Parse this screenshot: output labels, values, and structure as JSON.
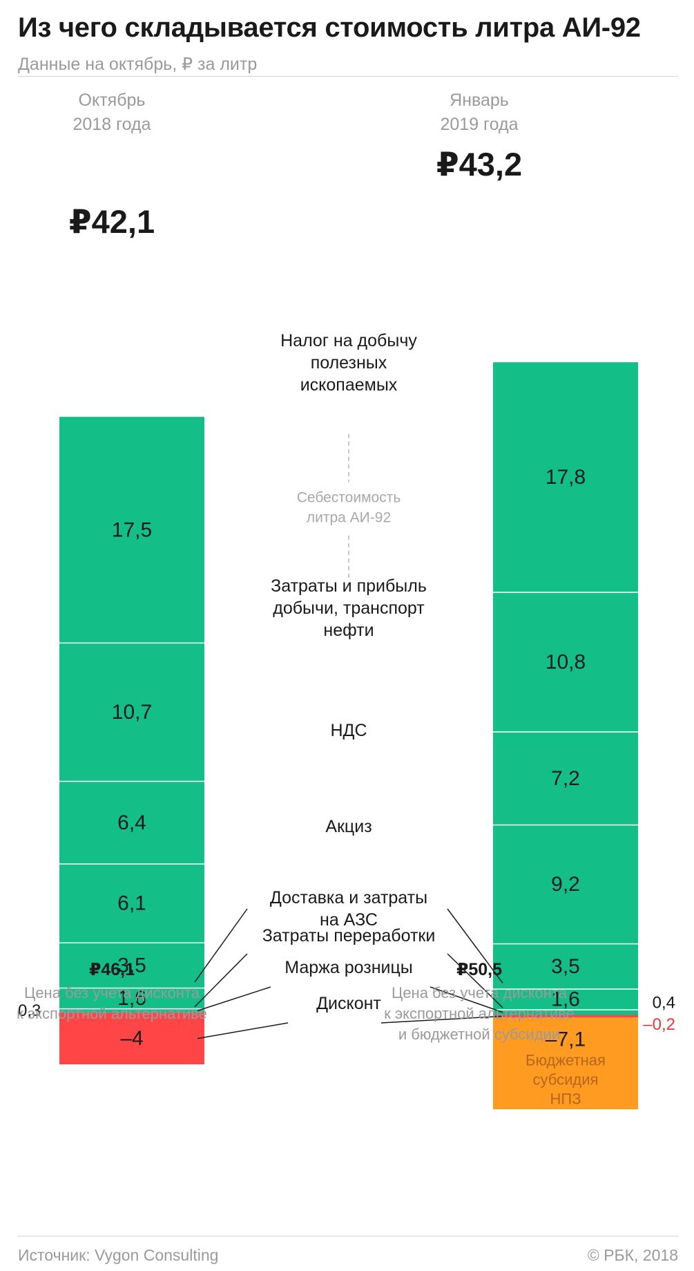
{
  "header": {
    "title": "Из чего складывается стоимость литра АИ-92",
    "subtitle": "Данные на октябрь, ₽ за литр"
  },
  "columns": [
    {
      "period_line1": "Октябрь",
      "period_line2": "2018 года",
      "total": "₽42,1",
      "bottom_total": "₽46,1",
      "bottom_note_line1": "Цена без учета дисконта",
      "bottom_note_line2": "к экспортной альтернативе",
      "bottom_note_line3": ""
    },
    {
      "period_line1": "Январь",
      "period_line2": "2019 года",
      "total": "₽43,2",
      "bottom_total": "₽50,5",
      "bottom_note_line1": "Цена без учета дисконта",
      "bottom_note_line2": "к экспортной альтернативе",
      "bottom_note_line3": "и бюджетной субсидии"
    }
  ],
  "chart_data": {
    "type": "bar",
    "subtype": "stacked",
    "categories": [
      "Октябрь 2018 года",
      "Январь 2019 года"
    ],
    "series": [
      {
        "name": "Налог на добычу полезных ископаемых",
        "values": [
          17.5,
          17.8
        ],
        "labels": [
          "17,5",
          "17,8"
        ],
        "color": "#13bf87"
      },
      {
        "name": "Затраты и прибыль добычи, транспорт нефти",
        "values": [
          10.7,
          10.8
        ],
        "labels": [
          "10,7",
          "10,8"
        ],
        "color": "#13bf87"
      },
      {
        "name": "НДС",
        "values": [
          6.4,
          7.2
        ],
        "labels": [
          "6,4",
          "7,2"
        ],
        "color": "#13bf87"
      },
      {
        "name": "Акциз",
        "values": [
          6.1,
          9.2
        ],
        "labels": [
          "6,1",
          "9,2"
        ],
        "color": "#13bf87"
      },
      {
        "name": "Доставка и затраты на АЗС",
        "values": [
          3.5,
          3.5
        ],
        "labels": [
          "3,5",
          "3,5"
        ],
        "color": "#13bf87"
      },
      {
        "name": "Затраты переработки",
        "values": [
          1.6,
          1.6
        ],
        "labels": [
          "1,6",
          "1,6"
        ],
        "color": "#13bf87"
      },
      {
        "name": "Маржа розницы",
        "values": [
          0.3,
          0.4
        ],
        "labels": [
          "0,3",
          "0,4"
        ],
        "color": "#13bf87"
      },
      {
        "name": "Дисконт",
        "values": [
          -4,
          -0.2
        ],
        "labels": [
          "–4",
          "–0,2"
        ],
        "color": "#ff4545"
      },
      {
        "name": "Бюджетная субсидия НПЗ",
        "values": [
          0,
          -7.1
        ],
        "labels": [
          "",
          "–7,1"
        ],
        "color": "#ff9b21"
      }
    ],
    "category_labels": [
      {
        "lines": [
          "Налог на добычу",
          "полезных",
          "ископаемых"
        ]
      },
      {
        "lines": [
          "Затраты и прибыль",
          "добычи, транспорт",
          "нефти"
        ]
      },
      {
        "lines": [
          "НДС"
        ]
      },
      {
        "lines": [
          "Акциз"
        ]
      },
      {
        "lines": [
          "Доставка и затраты",
          "на АЗС"
        ]
      },
      {
        "lines": [
          "Затраты переработки"
        ]
      },
      {
        "lines": [
          "Маржа розницы"
        ]
      },
      {
        "lines": [
          "Дисконт"
        ]
      }
    ],
    "annotation": {
      "lines": [
        "Себестоимость",
        "литра АИ-92"
      ]
    },
    "subsidy_caption": [
      "Бюджетная",
      "субсидия",
      "НПЗ"
    ],
    "colors": {
      "positive": "#13bf87",
      "discount": "#ff4545",
      "subsidy": "#ff9b21",
      "negative_text": "#e8383c"
    }
  },
  "footer": {
    "source": "Источник: Vygon Consulting",
    "copyright": "© РБК, 2018"
  }
}
